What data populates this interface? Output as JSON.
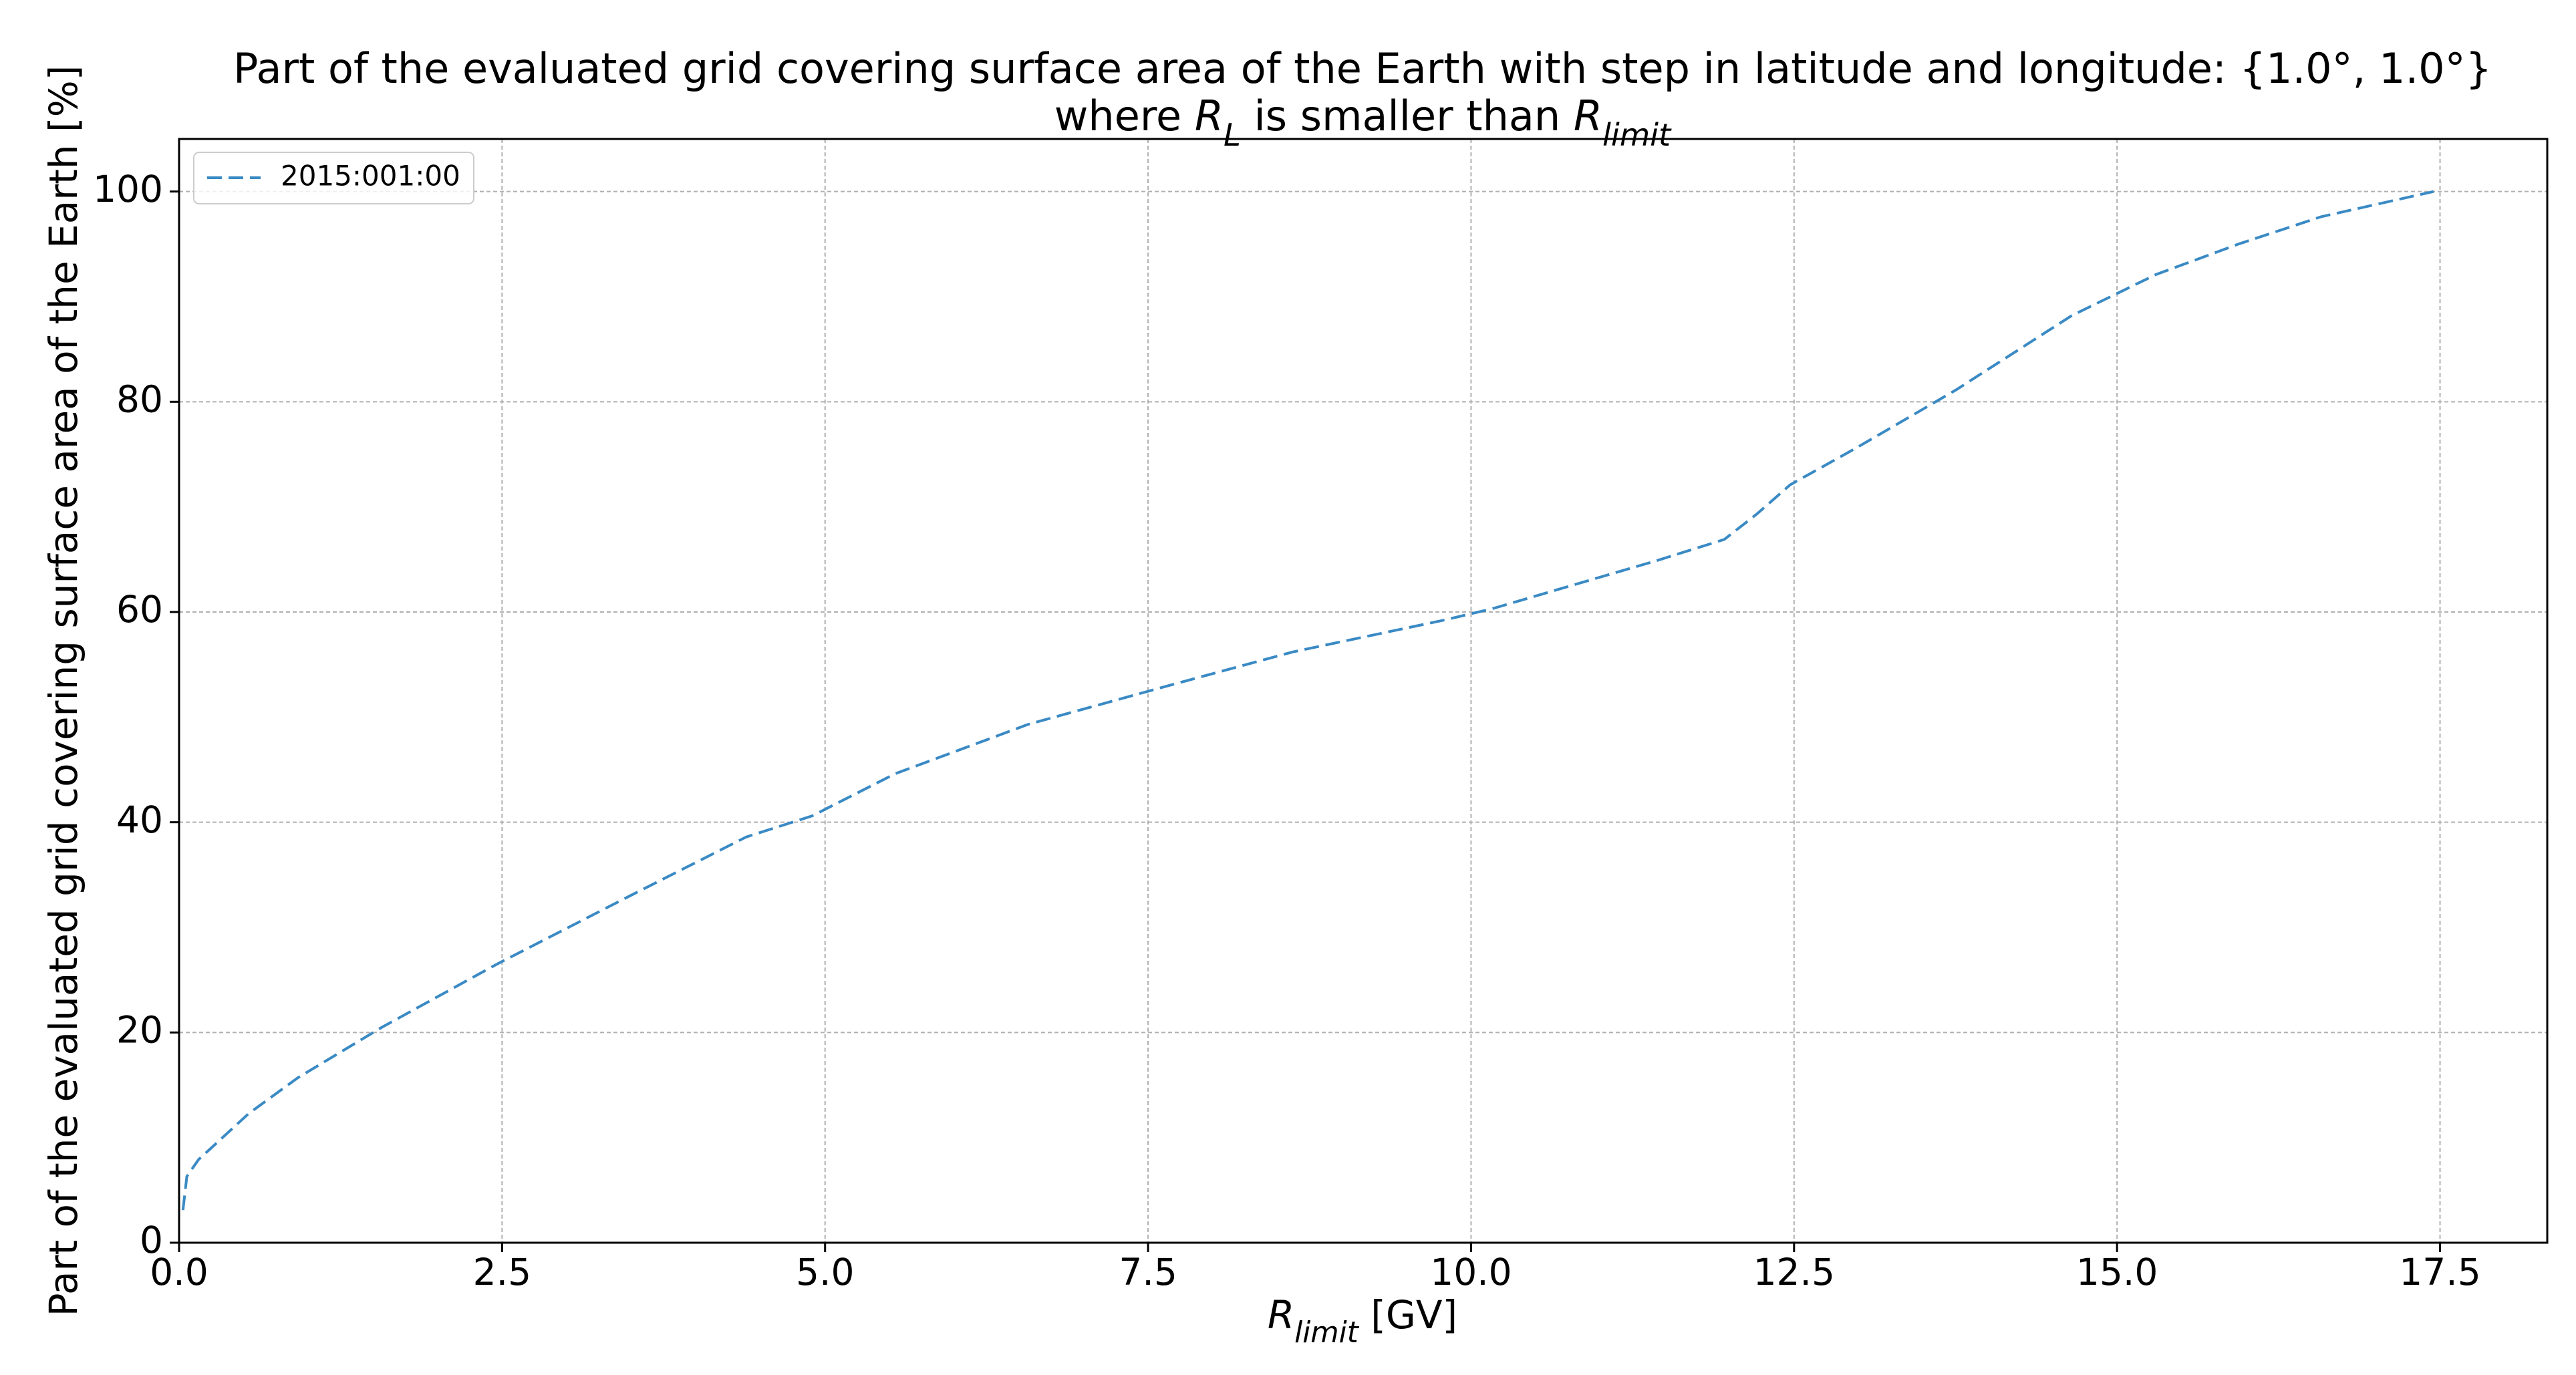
{
  "chart_data": {
    "type": "line",
    "title_lines": [
      [
        {
          "text": "Part of the evaluated grid covering surface area of the Earth with step in latitude and longitude: {1.0°, 1.0°}",
          "style": "normal"
        }
      ],
      [
        {
          "text": "where ",
          "style": "normal"
        },
        {
          "text": "R",
          "style": "italic"
        },
        {
          "text": "L",
          "style": "sub"
        },
        {
          "text": " is smaller than ",
          "style": "normal"
        },
        {
          "text": "R",
          "style": "italic"
        },
        {
          "text": "limit",
          "style": "sub"
        }
      ]
    ],
    "xlabel": [
      {
        "text": "R",
        "style": "italic"
      },
      {
        "text": "limit",
        "style": "sub"
      },
      {
        "text": " [GV]",
        "style": "normal"
      }
    ],
    "ylabel": [
      {
        "text": "Part of the evaluated grid covering surface area of the Earth  [%]",
        "style": "normal"
      }
    ],
    "series": [
      {
        "name": "2015:001:00",
        "color": "#3a8ac4",
        "x": [
          0.03,
          0.06,
          0.15,
          0.54,
          0.92,
          1.57,
          2.46,
          3.49,
          4.39,
          4.9,
          5.54,
          6.57,
          7.6,
          8.62,
          9.78,
          10.16,
          11.44,
          11.96,
          12.21,
          12.47,
          12.98,
          13.75,
          14.65,
          15.3,
          15.94,
          16.58,
          17.45
        ],
        "values": [
          3.1,
          6.3,
          7.9,
          12.3,
          15.7,
          20.5,
          26.5,
          33,
          38.6,
          40.6,
          44.6,
          49.3,
          52.8,
          56.2,
          59.2,
          60.3,
          64.9,
          66.9,
          69.3,
          72.1,
          75.6,
          81.1,
          88.2,
          92.1,
          95,
          97.6,
          100
        ]
      }
    ],
    "xlim": [
      0,
      18.33
    ],
    "ylim": [
      0,
      105
    ],
    "xticks": [
      {
        "value": 0,
        "label": "0.0"
      },
      2.5,
      {
        "value": 5,
        "label": "5.0"
      },
      7.5,
      {
        "value": 10,
        "label": "10.0"
      },
      12.5,
      {
        "value": 15,
        "label": "15.0"
      },
      17.5
    ],
    "yticks": [
      0,
      20,
      40,
      60,
      80,
      100
    ],
    "grid": true,
    "line_style": "dashed",
    "legend_position": "upper-left"
  }
}
